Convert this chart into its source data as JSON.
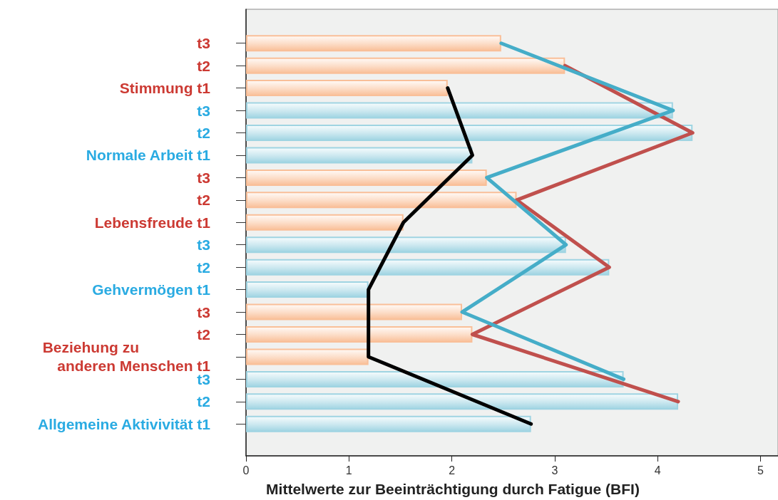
{
  "chart_data": {
    "type": "bar",
    "orientation": "horizontal",
    "xlabel": "Mittelwerte zur Beeinträchtigung durch Fatigue (BFI)",
    "categories": [
      "t3",
      "t2",
      "Stimmung t1",
      "t3",
      "t2",
      "Normale Arbeit t1",
      "t3",
      "t2",
      "Lebensfreude t1",
      "t3",
      "t2",
      "Gehvermögen t1",
      "t3",
      "t2",
      "Beziehung zu\nanderen Menschen t1",
      "t3",
      "t2",
      "Allgemeine Aktivivität t1"
    ],
    "xlim": [
      0,
      5.17
    ],
    "xticks": [
      0,
      1,
      2,
      3,
      4,
      5
    ],
    "series": [
      {
        "colors": [
          "#f9bf98",
          "#f9bf98",
          "#f9bf98",
          "#9fd4e2",
          "#9fd4e2",
          "#9fd4e2",
          "#f9bf98",
          "#f9bf98",
          "#f9bf98",
          "#9fd4e2",
          "#9fd4e2",
          "#9fd4e2",
          "#f9bf98",
          "#f9bf98",
          "#f9bf98",
          "#9fd4e2",
          "#9fd4e2",
          "#9fd4e2"
        ],
        "values": [
          2.48,
          3.1,
          1.96,
          4.15,
          4.34,
          2.2,
          2.34,
          2.63,
          1.53,
          3.11,
          3.53,
          1.19,
          2.1,
          2.2,
          1.19,
          3.67,
          4.2,
          2.77
        ]
      },
      {
        "type": "line",
        "color": "#000000",
        "values": [
          null,
          null,
          1.96,
          null,
          null,
          2.2,
          null,
          null,
          1.53,
          null,
          null,
          1.19,
          null,
          null,
          1.19,
          null,
          null,
          2.77
        ]
      },
      {
        "type": "line",
        "color": "#c0504d",
        "values": [
          null,
          3.1,
          null,
          null,
          4.34,
          null,
          null,
          2.63,
          null,
          null,
          3.53,
          null,
          null,
          2.2,
          null,
          null,
          4.2,
          null
        ]
      },
      {
        "type": "line",
        "color": "#45adc8",
        "values": [
          2.48,
          null,
          null,
          4.15,
          null,
          null,
          2.34,
          null,
          null,
          3.11,
          null,
          null,
          2.1,
          null,
          null,
          3.67,
          null,
          null
        ]
      }
    ]
  }
}
